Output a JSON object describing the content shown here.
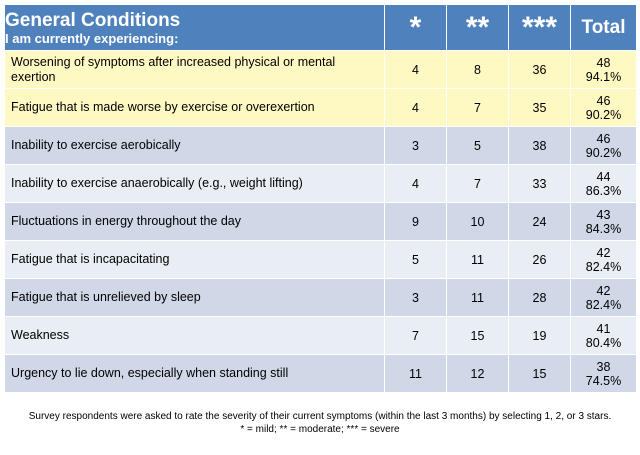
{
  "header": {
    "title": "General Conditions",
    "subtitle": "I am currently experiencing:",
    "col_mild": "*",
    "col_moderate": "**",
    "col_severe": "***",
    "col_total": "Total"
  },
  "colors": {
    "header_bg": "#4f81bd",
    "highlight_row": "#fef9c3",
    "band_dark": "#d0d8e8",
    "band_light": "#e9edf4"
  },
  "rows": [
    {
      "condition": "Worsening of symptoms after increased physical or mental exertion",
      "mild": "4",
      "moderate": "8",
      "severe": "36",
      "total": "48",
      "percent": "94.1%"
    },
    {
      "condition": "Fatigue that is made worse by exercise or overexertion",
      "mild": "4",
      "moderate": "7",
      "severe": "35",
      "total": "46",
      "percent": "90.2%"
    },
    {
      "condition": "Inability to exercise aerobically",
      "mild": "3",
      "moderate": "5",
      "severe": "38",
      "total": "46",
      "percent": "90.2%"
    },
    {
      "condition": "Inability to exercise anaerobically (e.g., weight lifting)",
      "mild": "4",
      "moderate": "7",
      "severe": "33",
      "total": "44",
      "percent": "86.3%"
    },
    {
      "condition": "Fluctuations in energy throughout the day",
      "mild": "9",
      "moderate": "10",
      "severe": "24",
      "total": "43",
      "percent": "84.3%"
    },
    {
      "condition": "Fatigue that is incapacitating",
      "mild": "5",
      "moderate": "11",
      "severe": "26",
      "total": "42",
      "percent": "82.4%"
    },
    {
      "condition": "Fatigue that is unrelieved by sleep",
      "mild": "3",
      "moderate": "11",
      "severe": "28",
      "total": "42",
      "percent": "82.4%"
    },
    {
      "condition": "Weakness",
      "mild": "7",
      "moderate": "15",
      "severe": "19",
      "total": "41",
      "percent": "80.4%"
    },
    {
      "condition": "Urgency to lie down, especially when standing still",
      "mild": "11",
      "moderate": "12",
      "severe": "15",
      "total": "38",
      "percent": "74.5%"
    }
  ],
  "footnote": {
    "line1": "Survey respondents were asked to rate the severity of their current symptoms (within the last 3 months) by selecting 1, 2, or 3 stars.",
    "line2": "* = mild;  ** = moderate;  *** = severe"
  }
}
